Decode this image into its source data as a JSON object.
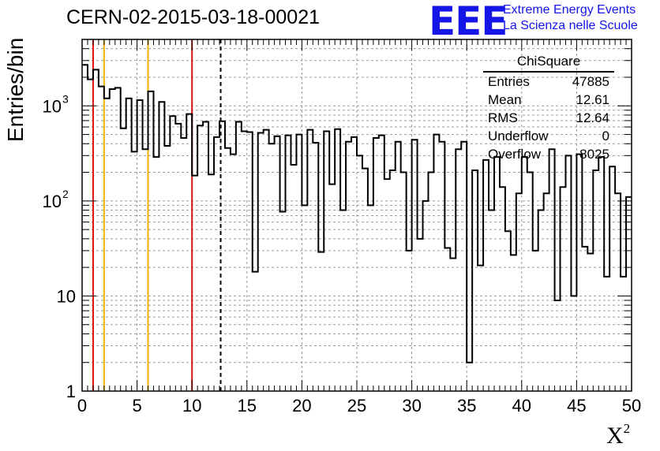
{
  "header": {
    "run_title": "CERN-02-2015-03-18-00021",
    "logo_text": "EEE",
    "logo_line1": "Extreme Energy Events",
    "logo_line2": "La Scienza nelle Scuole",
    "brand_color": "#1515e8"
  },
  "stats": {
    "title": "ChiSquare",
    "entries_label": "Entries",
    "entries_value": "47885",
    "mean_label": "Mean",
    "mean_value": "12.61",
    "rms_label": "RMS",
    "rms_value": "12.64",
    "underflow_label": "Underflow",
    "underflow_value": "0",
    "overflow_label": "Overflow",
    "overflow_value": "8025"
  },
  "chart_data": {
    "type": "histogram",
    "title": "CERN-02-2015-03-18-00021",
    "xlabel": "X²",
    "ylabel": "Entries/bin",
    "x_range": [
      0,
      50
    ],
    "y_range": [
      1,
      5000
    ],
    "y_scale": "log",
    "bin_width": 0.5,
    "x_ticks": [
      0,
      5,
      10,
      15,
      20,
      25,
      30,
      35,
      40,
      45,
      50
    ],
    "y_tick_labels": [
      "1",
      "10",
      "10^2",
      "10^3"
    ],
    "grid": true,
    "vertical_lines": [
      {
        "x": 1,
        "color": "#e01010",
        "style": "solid"
      },
      {
        "x": 2,
        "color": "#f0b400",
        "style": "solid"
      },
      {
        "x": 6,
        "color": "#f0b400",
        "style": "solid"
      },
      {
        "x": 10,
        "color": "#e01010",
        "style": "solid"
      },
      {
        "x": 12.61,
        "color": "#000000",
        "style": "dashed"
      }
    ],
    "bin_values": [
      2700,
      1900,
      2400,
      1600,
      1200,
      1500,
      1550,
      580,
      1200,
      330,
      1150,
      350,
      1420,
      290,
      1100,
      380,
      780,
      650,
      460,
      820,
      185,
      620,
      680,
      190,
      470,
      690,
      360,
      310,
      680,
      540,
      530,
      18,
      520,
      560,
      400,
      480,
      77,
      490,
      240,
      500,
      90,
      560,
      410,
      29,
      540,
      150,
      570,
      80,
      420,
      470,
      300,
      220,
      90,
      460,
      490,
      170,
      210,
      420,
      200,
      30,
      440,
      40,
      100,
      200,
      500,
      420,
      32,
      25,
      350,
      420,
      2,
      210,
      21,
      270,
      80,
      290,
      140,
      48,
      27,
      120,
      290,
      200,
      30,
      80,
      120,
      350,
      9,
      140,
      300,
      10,
      310,
      33,
      28,
      210,
      290,
      16,
      230,
      120,
      16,
      110
    ]
  }
}
